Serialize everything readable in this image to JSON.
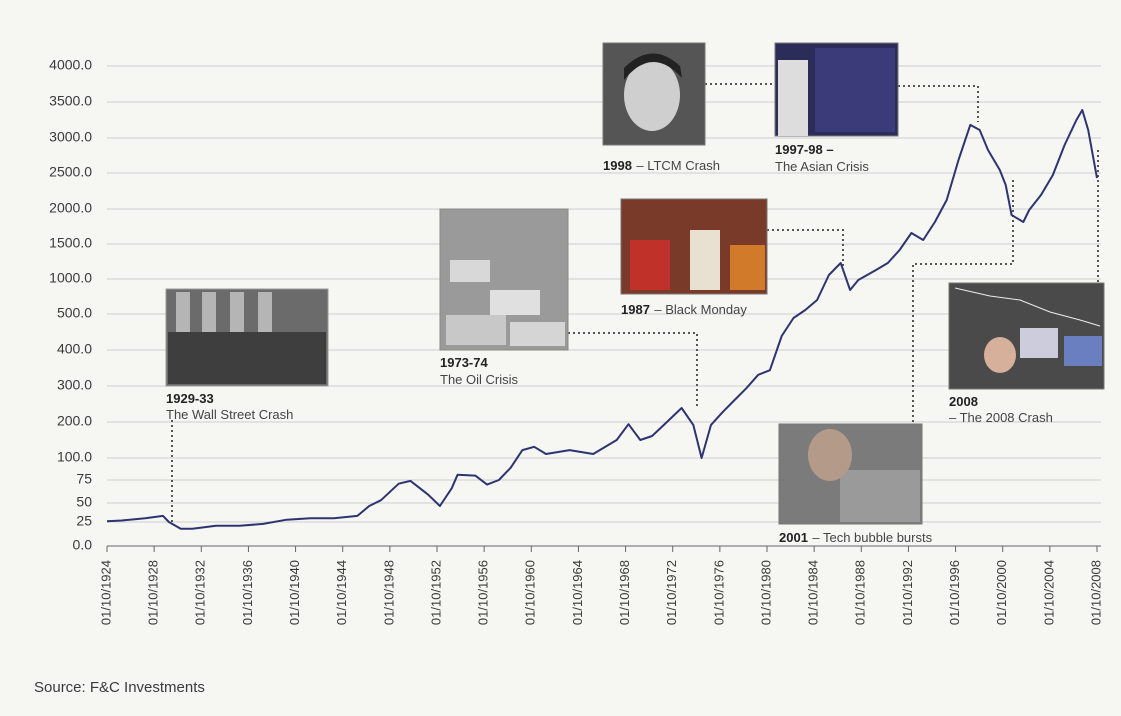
{
  "chart_data": {
    "type": "line",
    "color": "#2e3470",
    "grid": true,
    "y_scale": "piecewise",
    "ylim": [
      0,
      4000
    ],
    "yticks": [
      {
        "value": 0,
        "label": "0.0"
      },
      25,
      50,
      75,
      {
        "value": 100,
        "label": "100.0"
      },
      {
        "value": 200,
        "label": "200.0"
      },
      {
        "value": 300,
        "label": "300.0"
      },
      {
        "value": 400,
        "label": "400.0"
      },
      {
        "value": 500,
        "label": "500.0"
      },
      {
        "value": 1000,
        "label": "1000.0"
      },
      {
        "value": 1500,
        "label": "1500.0"
      },
      {
        "value": 2000,
        "label": "2000.0"
      },
      {
        "value": 2500,
        "label": "2500.0"
      },
      {
        "value": 3000,
        "label": "3000.0"
      },
      {
        "value": 3500,
        "label": "3500.0"
      },
      {
        "value": 4000,
        "label": "4000.0"
      }
    ],
    "xlim": [
      1924.75,
      2008.75
    ],
    "xticks": [
      {
        "value": 1924.75,
        "label": "01/10/1924"
      },
      {
        "value": 1928.75,
        "label": "01/10/1928"
      },
      {
        "value": 1932.75,
        "label": "01/10/1932"
      },
      {
        "value": 1936.75,
        "label": "01/10/1936"
      },
      {
        "value": 1940.75,
        "label": "01/10/1940"
      },
      {
        "value": 1944.75,
        "label": "01/10/1944"
      },
      {
        "value": 1948.75,
        "label": "01/10/1948"
      },
      {
        "value": 1952.75,
        "label": "01/10/1952"
      },
      {
        "value": 1956.75,
        "label": "01/10/1956"
      },
      {
        "value": 1960.75,
        "label": "01/10/1960"
      },
      {
        "value": 1964.75,
        "label": "01/10/1964"
      },
      {
        "value": 1968.75,
        "label": "01/10/1968"
      },
      {
        "value": 1972.75,
        "label": "01/10/1972"
      },
      {
        "value": 1976.75,
        "label": "01/10/1976"
      },
      {
        "value": 1980.75,
        "label": "01/10/1980"
      },
      {
        "value": 1984.75,
        "label": "01/10/1984"
      },
      {
        "value": 1988.75,
        "label": "01/10/1988"
      },
      {
        "value": 1992.75,
        "label": "01/10/1992"
      },
      {
        "value": 1996.75,
        "label": "01/10/1996"
      },
      {
        "value": 2000.75,
        "label": "01/10/2000"
      },
      {
        "value": 2004.75,
        "label": "01/10/2004"
      },
      {
        "value": 2008.75,
        "label": "01/10/2008"
      }
    ],
    "x": [
      1924.75,
      1926,
      1928,
      1929.5,
      1930,
      1931,
      1932,
      1934,
      1936,
      1938,
      1940,
      1942,
      1944,
      1946,
      1947,
      1948,
      1949.5,
      1950.5,
      1952,
      1953,
      1954,
      1954.5,
      1956,
      1957,
      1958,
      1959,
      1960,
      1961,
      1962,
      1964,
      1966,
      1968,
      1969,
      1970,
      1971,
      1972,
      1973.5,
      1974.5,
      1975.2,
      1976,
      1977,
      1978,
      1979,
      1980,
      1981,
      1982,
      1983,
      1984,
      1985,
      1986,
      1987,
      1987.8,
      1988.5,
      1990,
      1991,
      1992,
      1993,
      1994,
      1995,
      1996,
      1997,
      1998,
      1998.8,
      1999.5,
      2000.5,
      2001,
      2001.5,
      2002.5,
      2003,
      2004,
      2005,
      2006,
      2007,
      2007.5,
      2008,
      2008.75
    ],
    "values": [
      26,
      27,
      30,
      33,
      25,
      18,
      18,
      21,
      21,
      23,
      28,
      30,
      30,
      33,
      46,
      53,
      71,
      74,
      59,
      46,
      66,
      81,
      80,
      70,
      75,
      89,
      122,
      131,
      111,
      122,
      111,
      150,
      194,
      150,
      161,
      192,
      239,
      192,
      100,
      192,
      228,
      261,
      294,
      331,
      344,
      439,
      489,
      557,
      700,
      1057,
      1229,
      843,
      986,
      1129,
      1229,
      1414,
      1657,
      1557,
      1814,
      2125,
      2686,
      3182,
      3111,
      2829,
      2543,
      2333,
      1914,
      1814,
      1986,
      2194,
      2471,
      2900,
      3250,
      3389,
      3111,
      2429
    ],
    "annotations": [
      {
        "period": "1929-33",
        "event": "The Wall Street Crash"
      },
      {
        "period": "1973-74",
        "event": "The Oil Crisis"
      },
      {
        "period": "1987",
        "event": "– Black Monday"
      },
      {
        "period": "1998",
        "event": "– LTCM Crash"
      },
      {
        "period": "1997-98 –",
        "event": "The Asian Crisis"
      },
      {
        "period": "2008",
        "event": "– The 2008 Crash"
      },
      {
        "period": "2001",
        "event": "– Tech bubble bursts"
      }
    ],
    "source": "Source: F&C Investments"
  }
}
